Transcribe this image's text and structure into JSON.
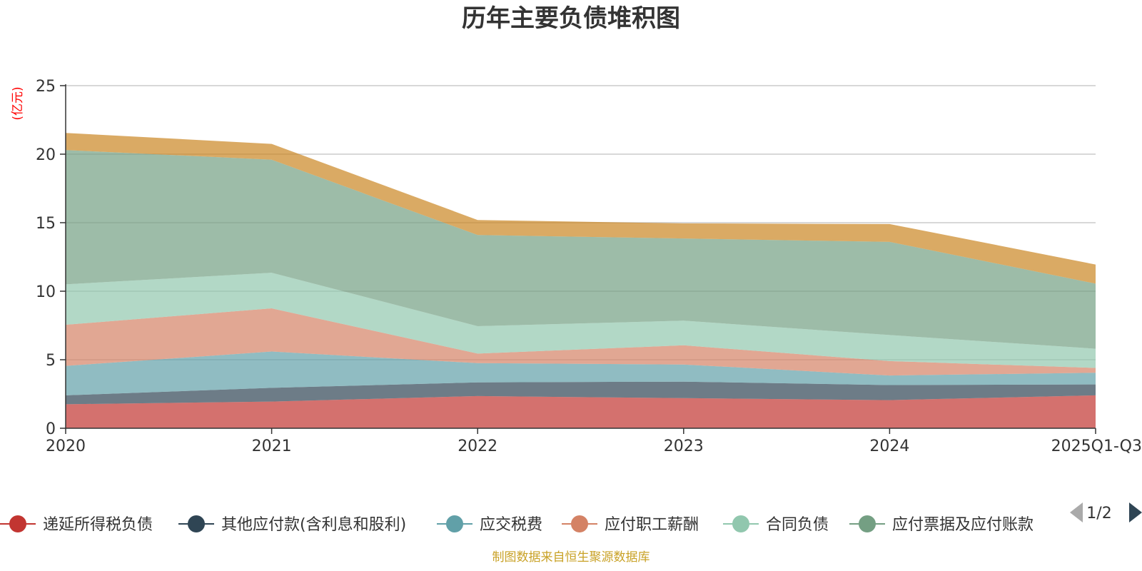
{
  "chart_data": {
    "type": "area",
    "stacked": true,
    "title": "历年主要负债堆积图",
    "ylabel": "(亿元)",
    "ylim": [
      0,
      25
    ],
    "yticks": [
      0,
      5,
      10,
      15,
      20,
      25
    ],
    "grid": true,
    "categories": [
      "2020",
      "2021",
      "2022",
      "2023",
      "2024",
      "2025Q1-Q3"
    ],
    "series": [
      {
        "name": "递延所得税负债",
        "color": "#c23531",
        "values": [
          1.75,
          1.95,
          2.35,
          2.2,
          2.05,
          2.4
        ]
      },
      {
        "name": "其他应付款(含利息和股利)",
        "color": "#2f4554",
        "values": [
          0.65,
          1.0,
          1.0,
          1.2,
          1.1,
          0.8
        ]
      },
      {
        "name": "应交税费",
        "color": "#61a0a8",
        "values": [
          2.15,
          2.65,
          1.4,
          1.25,
          0.7,
          0.85
        ]
      },
      {
        "name": "应付职工薪酬",
        "color": "#d48265",
        "values": [
          3.0,
          3.15,
          0.7,
          1.4,
          1.05,
          0.35
        ]
      },
      {
        "name": "合同负债",
        "color": "#91c7ae",
        "values": [
          2.95,
          2.6,
          2.0,
          1.8,
          1.9,
          1.4
        ]
      },
      {
        "name": "应付票据及应付账款",
        "color": "#749f83",
        "values": [
          9.8,
          8.25,
          6.65,
          6.0,
          6.8,
          4.75
        ]
      },
      {
        "name": "",
        "color": "#ca8622",
        "values": [
          1.25,
          1.15,
          1.1,
          1.1,
          1.3,
          1.4
        ]
      }
    ]
  },
  "legend": {
    "page": "1/2"
  },
  "source": "制图数据来自恒生聚源数据库",
  "colors": {
    "text": "#333333",
    "grid": "#cccccc",
    "axis": "#333333",
    "ylabel": "#ff0000",
    "source": "#c9a227",
    "pager_active": "#2f4554",
    "pager_inactive": "#aaaaaa"
  }
}
